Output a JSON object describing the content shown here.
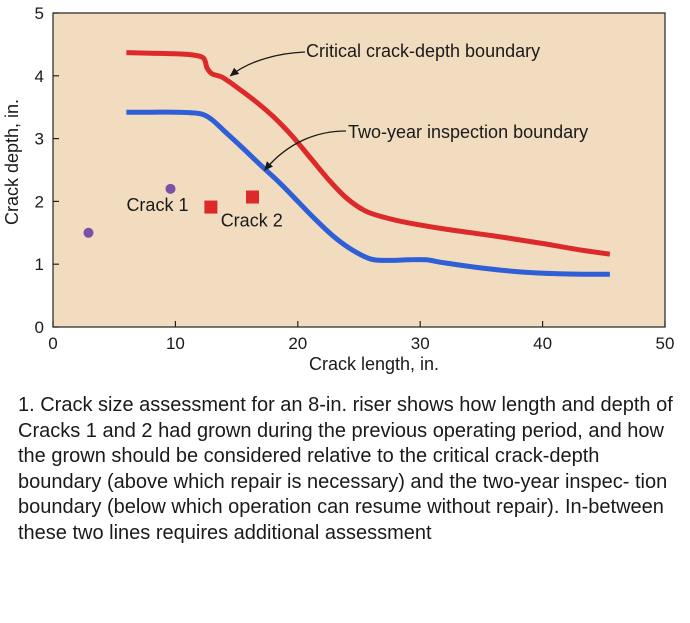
{
  "chart_data": {
    "type": "line",
    "xlabel": "Crack length, in.",
    "ylabel": "Crack depth, in.",
    "xlim": [
      0,
      50
    ],
    "ylim": [
      0,
      5
    ],
    "x_ticks": [
      0,
      10,
      20,
      30,
      40,
      50
    ],
    "y_ticks": [
      0,
      1,
      2,
      3,
      4,
      5
    ],
    "grid": false,
    "background_color": "#f2dcc0",
    "series": [
      {
        "name": "Critical crack-depth boundary",
        "color": "#dc2a2a",
        "x": [
          6,
          8,
          10,
          11.5,
          12.3,
          12.6,
          13,
          13.8,
          15,
          16.5,
          18,
          19.5,
          21,
          22.5,
          24,
          25.5,
          27,
          29,
          32,
          36,
          40,
          43,
          45.5
        ],
        "y": [
          4.37,
          4.36,
          4.35,
          4.33,
          4.28,
          4.12,
          4.03,
          3.98,
          3.82,
          3.6,
          3.35,
          3.05,
          2.7,
          2.35,
          2.05,
          1.85,
          1.75,
          1.66,
          1.56,
          1.45,
          1.33,
          1.23,
          1.16
        ]
      },
      {
        "name": "Two-year inspection boundary",
        "color": "#2f5fd6",
        "x": [
          6,
          8,
          10,
          11.5,
          12.3,
          13,
          14,
          15.5,
          17,
          18.5,
          20,
          21.5,
          23,
          24.5,
          26,
          27.5,
          29,
          30.5,
          32,
          35,
          38,
          41,
          43.5,
          45.5
        ],
        "y": [
          3.42,
          3.42,
          3.42,
          3.41,
          3.38,
          3.3,
          3.12,
          2.85,
          2.57,
          2.3,
          2.0,
          1.7,
          1.43,
          1.22,
          1.08,
          1.06,
          1.07,
          1.07,
          1.02,
          0.94,
          0.88,
          0.85,
          0.84,
          0.84
        ]
      }
    ],
    "points": [
      {
        "label": "Crack 1",
        "color": "#7a4fa6",
        "marker": "circle",
        "x": 2.9,
        "y": 1.5
      },
      {
        "label": "Crack 1",
        "color": "#7a4fa6",
        "marker": "circle",
        "x": 9.6,
        "y": 2.2
      },
      {
        "label": "Crack 2",
        "color": "#dc2a2a",
        "marker": "square",
        "x": 12.9,
        "y": 1.91
      },
      {
        "label": "Crack 2",
        "color": "#dc2a2a",
        "marker": "square",
        "x": 16.3,
        "y": 2.07
      }
    ],
    "annotations": [
      {
        "text": "Critical crack-depth boundary",
        "points_to_series": 0,
        "x": 14.5,
        "y": 4.0
      },
      {
        "text": "Two-year inspection boundary",
        "points_to_series": 1,
        "x": 17.3,
        "y": 2.5
      },
      {
        "text": "Crack 1",
        "x": 6.0,
        "y": 1.85
      },
      {
        "text": "Crack 2",
        "x": 13.7,
        "y": 1.6
      }
    ]
  },
  "caption": "1. Crack size assessment for an 8-in. riser shows how length and depth of Cracks 1 and 2 had grown during the previous operating period, and how the grown should be considered relative to the critical crack-depth boundary (above which repair is necessary) and the two-year inspec- tion boundary (below which operation can resume without repair). In-between these two lines requires additional assessment"
}
